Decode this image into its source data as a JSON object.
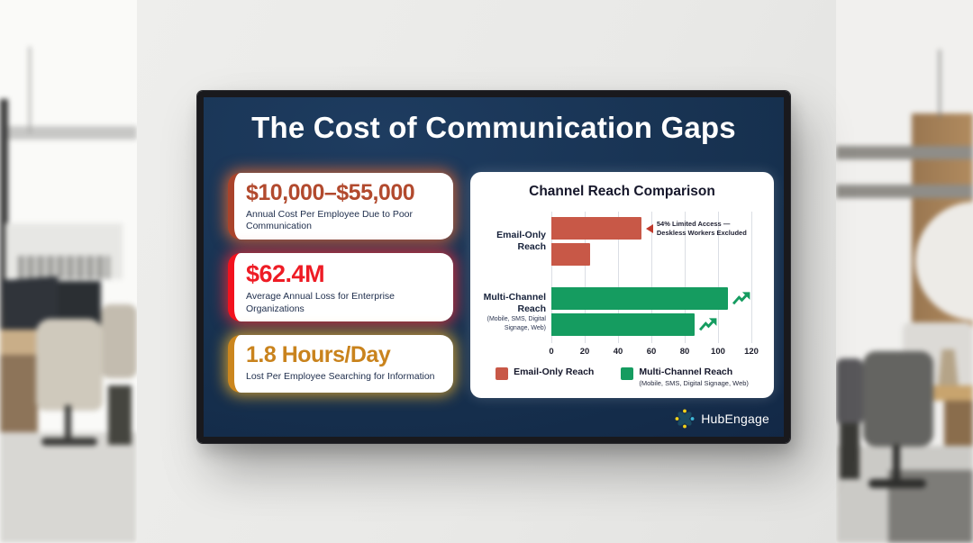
{
  "slide": {
    "bg_color": "#16304e",
    "title": "The Cost of Communication Gaps",
    "stats": [
      {
        "value": "$10,000–$55,000",
        "desc": "Annual Cost Per Employee Due to Poor Communication",
        "value_color": "#b24a2e",
        "accent_color": "#a9432b",
        "glow_color": "rgba(236,106,48,0.8)"
      },
      {
        "value": "$62.4M",
        "desc": "Average Annual Loss for Enterprise Organizations",
        "value_color": "#ee1c25",
        "accent_color": "#f2121e",
        "glow_color": "rgba(244,44,52,0.8)"
      },
      {
        "value": "1.8 Hours/Day",
        "desc": "Lost Per Employee Searching for Information",
        "value_color": "#c9831d",
        "accent_color": "#cb861e",
        "glow_color": "rgba(240,176,44,0.8)"
      }
    ],
    "brand": "HubEngage"
  },
  "chart_data": {
    "type": "bar",
    "orientation": "horizontal",
    "title": "Channel Reach Comparison",
    "xlim": [
      0,
      120
    ],
    "ticks": [
      "0",
      "20",
      "40",
      "60",
      "80",
      "100",
      "120"
    ],
    "grid": true,
    "legend_position": "bottom",
    "groups": [
      {
        "label": "Email-Only Reach",
        "sublabel": "",
        "color": "#c85847",
        "values": [
          54,
          23
        ]
      },
      {
        "label": "Multi-Channel Reach",
        "sublabel": "(Mobile, SMS, Digital Signage, Web)",
        "color": "#159c60",
        "values": [
          107,
          86
        ]
      }
    ],
    "annotation": {
      "line1": "54% Limited Access —",
      "line2": "Deskless Workers Excluded",
      "target_value": 54,
      "marker_color": "#c0392b"
    },
    "legend": [
      {
        "label": "Email-Only Reach",
        "sublabel": "",
        "color": "#c85847"
      },
      {
        "label": "Multi-Channel Reach",
        "sublabel": "(Mobile, SMS, Digital Signage, Web)",
        "color": "#159c60"
      }
    ]
  }
}
